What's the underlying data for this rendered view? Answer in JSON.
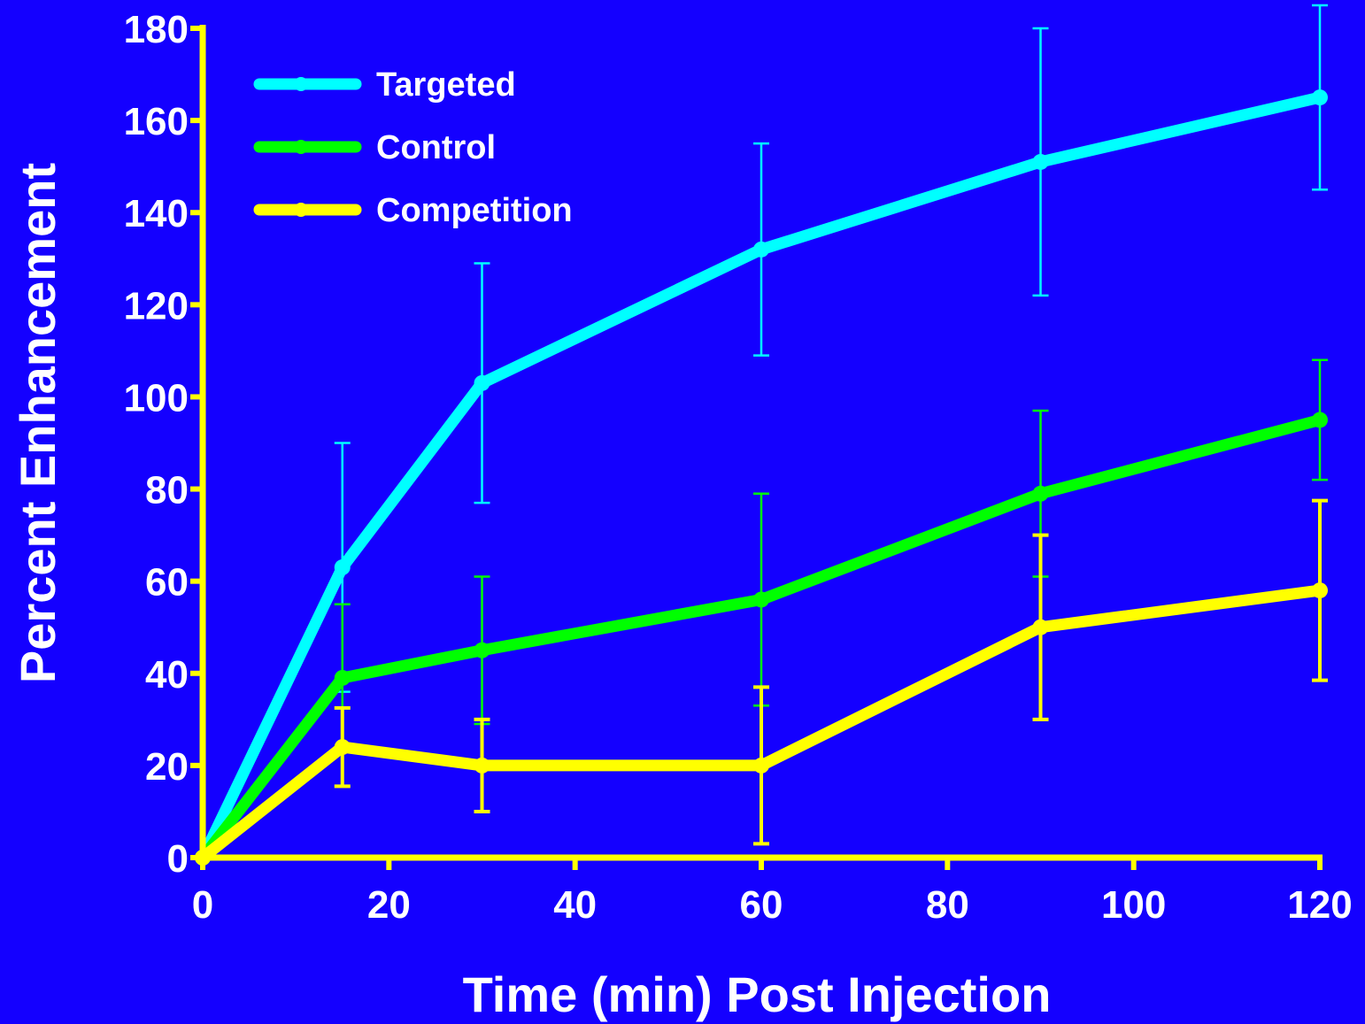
{
  "chart_data": {
    "type": "line",
    "xlabel": "Time (min) Post Injection",
    "ylabel": "Percent Enhancement",
    "xlim": [
      0,
      120
    ],
    "ylim": [
      0,
      180
    ],
    "xticks": [
      0,
      20,
      40,
      60,
      80,
      100,
      120
    ],
    "yticks": [
      0,
      20,
      40,
      60,
      80,
      100,
      120,
      140,
      160,
      180
    ],
    "legend_position": "top-left",
    "grid": false,
    "axis_color": "#ffff00",
    "background_color": "#1400ff",
    "series": [
      {
        "name": "Targeted",
        "color": "#00ffff",
        "x": [
          0,
          15,
          30,
          60,
          90,
          120
        ],
        "y": [
          0,
          63,
          103,
          132,
          151,
          165
        ],
        "error": [
          0,
          27,
          26,
          23,
          29,
          20
        ]
      },
      {
        "name": "Control",
        "color": "#00ff00",
        "x": [
          0,
          15,
          30,
          60,
          90,
          120
        ],
        "y": [
          0,
          39,
          45,
          56,
          79,
          95
        ],
        "error": [
          0,
          16,
          16,
          23,
          18,
          13
        ]
      },
      {
        "name": "Competition",
        "color": "#ffff00",
        "x": [
          0,
          15,
          30,
          60,
          90,
          120
        ],
        "y": [
          0,
          24,
          20,
          20,
          50,
          58
        ],
        "error": [
          0,
          8.5,
          10,
          17,
          20,
          19.5
        ]
      }
    ]
  }
}
